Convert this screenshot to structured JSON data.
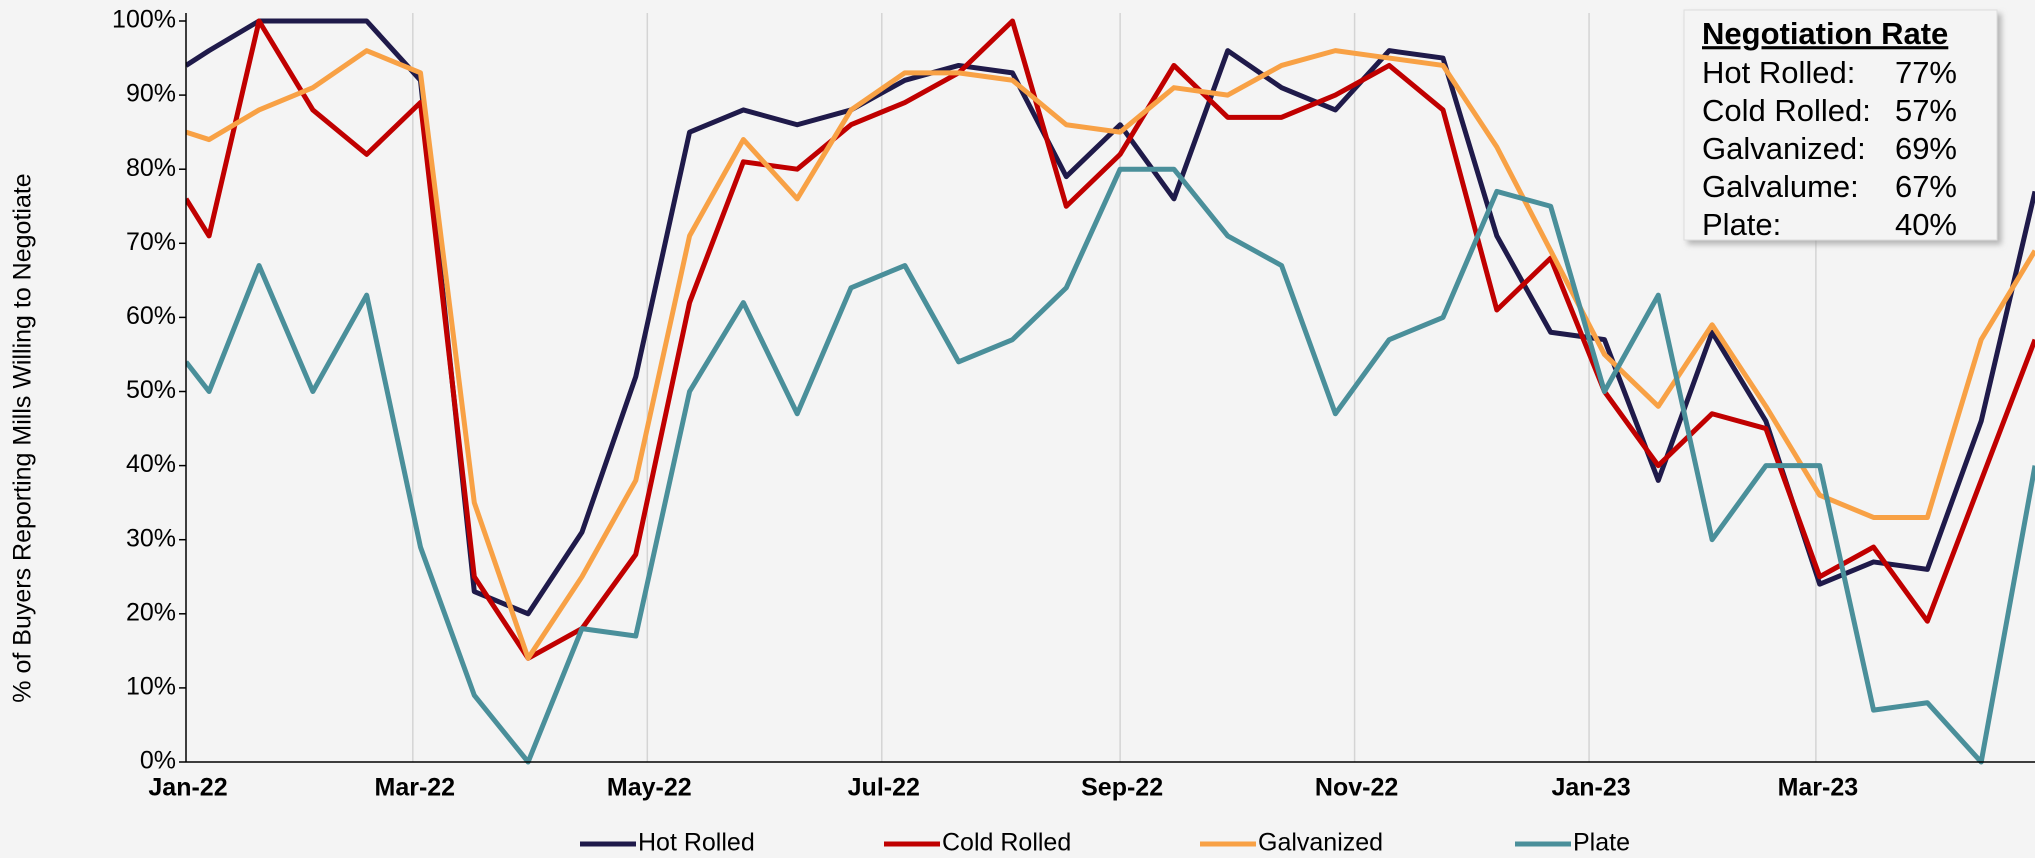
{
  "chart_data": {
    "type": "line",
    "y_axis_label": "% of Buyers Reporting Mills Willing to Negotiate",
    "x": [
      0,
      6,
      19,
      33,
      47,
      61,
      75,
      89,
      103,
      117,
      131,
      145,
      159,
      173,
      187,
      201,
      215,
      229,
      243,
      257,
      271,
      285,
      299,
      313,
      327,
      341,
      355,
      369,
      383,
      397,
      411,
      425,
      439,
      453,
      467,
      481
    ],
    "xlim": [
      0,
      481
    ],
    "xticks": [
      {
        "value": 0,
        "label": "Jan-22"
      },
      {
        "value": 59,
        "label": "Mar-22"
      },
      {
        "value": 120,
        "label": "May-22"
      },
      {
        "value": 181,
        "label": "Jul-22"
      },
      {
        "value": 243,
        "label": "Sep-22"
      },
      {
        "value": 304,
        "label": "Nov-22"
      },
      {
        "value": 365,
        "label": "Jan-23"
      },
      {
        "value": 424,
        "label": "Mar-23"
      }
    ],
    "ylim": [
      0,
      100
    ],
    "yticks": [
      {
        "value": 0,
        "label": "0%"
      },
      {
        "value": 10,
        "label": "10%"
      },
      {
        "value": 20,
        "label": "20%"
      },
      {
        "value": 30,
        "label": "30%"
      },
      {
        "value": 40,
        "label": "40%"
      },
      {
        "value": 50,
        "label": "50%"
      },
      {
        "value": 60,
        "label": "60%"
      },
      {
        "value": 70,
        "label": "70%"
      },
      {
        "value": 80,
        "label": "80%"
      },
      {
        "value": 90,
        "label": "90%"
      },
      {
        "value": 100,
        "label": "100%"
      }
    ],
    "grid": "x",
    "legend": "bottom",
    "series": [
      {
        "name": "Hot Rolled",
        "color": "#1f1a4a",
        "values": [
          94,
          96,
          100,
          100,
          100,
          92,
          23,
          20,
          31,
          52,
          85,
          88,
          86,
          88,
          92,
          94,
          93,
          79,
          86,
          76,
          96,
          91,
          88,
          96,
          95,
          71,
          58,
          57,
          38,
          58,
          46,
          24,
          27,
          26,
          46,
          77
        ]
      },
      {
        "name": "Cold Rolled",
        "color": "#c00000",
        "values": [
          76,
          71,
          100,
          88,
          82,
          89,
          25,
          14,
          18,
          28,
          62,
          81,
          80,
          86,
          89,
          93,
          100,
          75,
          82,
          94,
          87,
          87,
          90,
          94,
          88,
          61,
          68,
          50,
          40,
          47,
          45,
          25,
          29,
          19,
          38,
          57
        ]
      },
      {
        "name": "Galvanized",
        "color": "#f8a145",
        "values": [
          85,
          84,
          88,
          91,
          96,
          93,
          35,
          14,
          25,
          38,
          71,
          84,
          76,
          88,
          93,
          93,
          92,
          86,
          85,
          91,
          90,
          94,
          96,
          95,
          94,
          83,
          69,
          55,
          48,
          59,
          48,
          36,
          33,
          33,
          57,
          69
        ]
      },
      {
        "name": "Plate",
        "color": "#4a8f9a",
        "values": [
          54,
          50,
          67,
          50,
          63,
          29,
          9,
          0,
          18,
          17,
          50,
          62,
          47,
          64,
          67,
          54,
          57,
          64,
          80,
          80,
          71,
          67,
          47,
          57,
          60,
          77,
          75,
          50,
          63,
          30,
          40,
          40,
          7,
          8,
          0,
          40
        ]
      }
    ],
    "negotiation_rate": {
      "title": "Negotiation Rate",
      "rows": [
        {
          "label": "Hot Rolled:",
          "value": 77,
          "value_label": "77%",
          "color": "#000000"
        },
        {
          "label": "Cold Rolled:",
          "value": 57,
          "value_label": "57%",
          "color": "#c00000"
        },
        {
          "label": "Galvanized:",
          "value": 69,
          "value_label": "69%",
          "color": "#f8a145"
        },
        {
          "label": "Galvalume:",
          "value": 67,
          "value_label": "67%",
          "color": "#1a9bd7"
        },
        {
          "label": "Plate:",
          "value": 40,
          "value_label": "40%",
          "color": "#4a8f9a"
        }
      ]
    }
  }
}
